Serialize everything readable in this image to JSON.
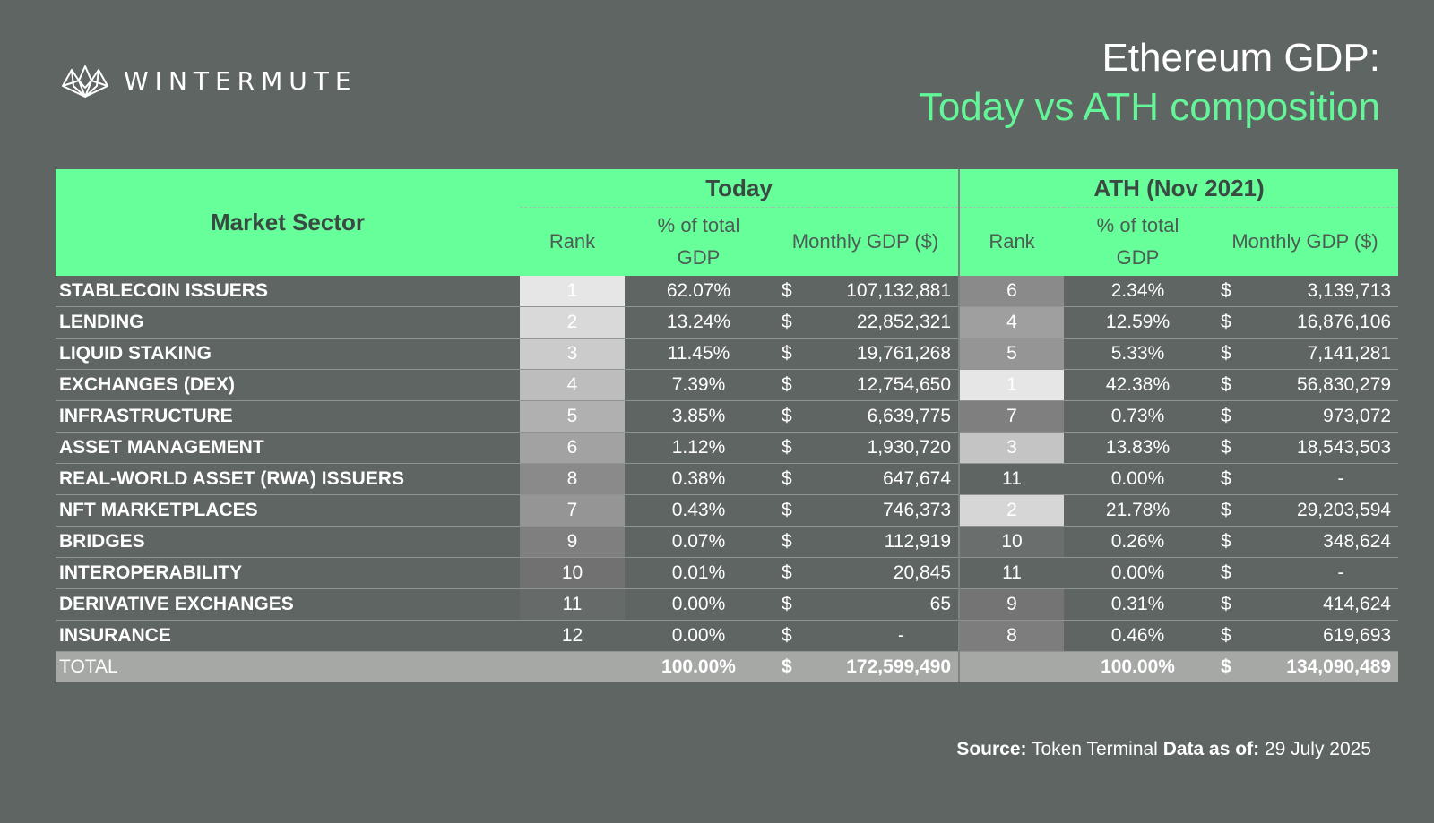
{
  "brand": {
    "name": "WINTERMUTE",
    "icon": "wintermute-logo-icon"
  },
  "title": {
    "line1": "Ethereum GDP:",
    "line2": "Today vs ATH composition"
  },
  "colors": {
    "accent": "#66ff99",
    "background": "#5f6563",
    "title_accent": "#63f598"
  },
  "table": {
    "sector_header": "Market Sector",
    "group_today": "Today",
    "group_ath": "ATH (Nov 2021)",
    "col_rank": "Rank",
    "col_pct_line1": "% of total",
    "col_pct_line2": "GDP",
    "col_gdp": "Monthly GDP ($)",
    "currency": "$",
    "rows": [
      {
        "sector": "STABLECOIN ISSUERS",
        "today_rank": "1",
        "today_pct": "62.07%",
        "today_gdp": "107,132,881",
        "ath_rank": "6",
        "ath_pct": "2.34%",
        "ath_gdp": "3,139,713",
        "today_shade": "#e6e6e6",
        "ath_shade": "#8a8a8a"
      },
      {
        "sector": "LENDING",
        "today_rank": "2",
        "today_pct": "13.24%",
        "today_gdp": "22,852,321",
        "ath_rank": "4",
        "ath_pct": "12.59%",
        "ath_gdp": "16,876,106",
        "today_shade": "#d9d9d9",
        "ath_shade": "#9f9f9f"
      },
      {
        "sector": "LIQUID STAKING",
        "today_rank": "3",
        "today_pct": "11.45%",
        "today_gdp": "19,761,268",
        "ath_rank": "5",
        "ath_pct": "5.33%",
        "ath_gdp": "7,141,281",
        "today_shade": "#cbcbcb",
        "ath_shade": "#959595"
      },
      {
        "sector": "EXCHANGES (DEX)",
        "today_rank": "4",
        "today_pct": "7.39%",
        "today_gdp": "12,754,650",
        "ath_rank": "1",
        "ath_pct": "42.38%",
        "ath_gdp": "56,830,279",
        "today_shade": "#bdbdbd",
        "ath_shade": "#e6e6e6"
      },
      {
        "sector": "INFRASTRUCTURE",
        "today_rank": "5",
        "today_pct": "3.85%",
        "today_gdp": "6,639,775",
        "ath_rank": "7",
        "ath_pct": "0.73%",
        "ath_gdp": "973,072",
        "today_shade": "#b0b0b0",
        "ath_shade": "#7f7f7f"
      },
      {
        "sector": "ASSET MANAGEMENT",
        "today_rank": "6",
        "today_pct": "1.12%",
        "today_gdp": "1,930,720",
        "ath_rank": "3",
        "ath_pct": "13.83%",
        "ath_gdp": "18,543,503",
        "today_shade": "#a2a2a2",
        "ath_shade": "#c4c4c4"
      },
      {
        "sector": "REAL-WORLD ASSET (RWA) ISSUERS",
        "today_rank": "8",
        "today_pct": "0.38%",
        "today_gdp": "647,674",
        "ath_rank": "11",
        "ath_pct": "0.00%",
        "ath_gdp": "-",
        "today_shade": "#8a8a8a",
        "ath_shade": "#5f6563"
      },
      {
        "sector": "NFT MARKETPLACES",
        "today_rank": "7",
        "today_pct": "0.43%",
        "today_gdp": "746,373",
        "ath_rank": "2",
        "ath_pct": "21.78%",
        "ath_gdp": "29,203,594",
        "today_shade": "#959595",
        "ath_shade": "#d6d6d6"
      },
      {
        "sector": "BRIDGES",
        "today_rank": "9",
        "today_pct": "0.07%",
        "today_gdp": "112,919",
        "ath_rank": "10",
        "ath_pct": "0.26%",
        "ath_gdp": "348,624",
        "today_shade": "#7f7f7f",
        "ath_shade": "#6a6e6c"
      },
      {
        "sector": "INTEROPERABILITY",
        "today_rank": "10",
        "today_pct": "0.01%",
        "today_gdp": "20,845",
        "ath_rank": "11",
        "ath_pct": "0.00%",
        "ath_gdp": "-",
        "today_shade": "#717171",
        "ath_shade": "#5f6563"
      },
      {
        "sector": "DERIVATIVE EXCHANGES",
        "today_rank": "11",
        "today_pct": "0.00%",
        "today_gdp": "65",
        "ath_rank": "9",
        "ath_pct": "0.31%",
        "ath_gdp": "414,624",
        "today_shade": "#666a68",
        "ath_shade": "#747474"
      },
      {
        "sector": "INSURANCE",
        "today_rank": "12",
        "today_pct": "0.00%",
        "today_gdp": "-",
        "ath_rank": "8",
        "ath_pct": "0.46%",
        "ath_gdp": "619,693",
        "today_shade": "#5f6563",
        "ath_shade": "#7d7d7d"
      }
    ],
    "total": {
      "label": "TOTAL",
      "today_pct": "100.00%",
      "today_gdp": "172,599,490",
      "ath_pct": "100.00%",
      "ath_gdp": "134,090,489"
    }
  },
  "source": {
    "label": "Source:",
    "value": "Token Terminal",
    "date_label": "Data as of:",
    "date_value": "29 July 2025"
  },
  "chart_data": {
    "type": "table",
    "title": "Ethereum GDP: Today vs ATH composition",
    "columns": [
      "Market Sector",
      "Today Rank",
      "Today % of total GDP",
      "Today Monthly GDP ($)",
      "ATH Rank",
      "ATH % of total GDP",
      "ATH Monthly GDP ($)"
    ],
    "rows": [
      [
        "STABLECOIN ISSUERS",
        1,
        62.07,
        107132881,
        6,
        2.34,
        3139713
      ],
      [
        "LENDING",
        2,
        13.24,
        22852321,
        4,
        12.59,
        16876106
      ],
      [
        "LIQUID STAKING",
        3,
        11.45,
        19761268,
        5,
        5.33,
        7141281
      ],
      [
        "EXCHANGES (DEX)",
        4,
        7.39,
        12754650,
        1,
        42.38,
        56830279
      ],
      [
        "INFRASTRUCTURE",
        5,
        3.85,
        6639775,
        7,
        0.73,
        973072
      ],
      [
        "ASSET MANAGEMENT",
        6,
        1.12,
        1930720,
        3,
        13.83,
        18543503
      ],
      [
        "REAL-WORLD ASSET (RWA) ISSUERS",
        8,
        0.38,
        647674,
        11,
        0.0,
        null
      ],
      [
        "NFT MARKETPLACES",
        7,
        0.43,
        746373,
        2,
        21.78,
        29203594
      ],
      [
        "BRIDGES",
        9,
        0.07,
        112919,
        10,
        0.26,
        348624
      ],
      [
        "INTEROPERABILITY",
        10,
        0.01,
        20845,
        11,
        0.0,
        null
      ],
      [
        "DERIVATIVE EXCHANGES",
        11,
        0.0,
        65,
        9,
        0.31,
        414624
      ],
      [
        "INSURANCE",
        12,
        0.0,
        null,
        8,
        0.46,
        619693
      ]
    ],
    "totals": {
      "today_pct": 100.0,
      "today_gdp": 172599490,
      "ath_pct": 100.0,
      "ath_gdp": 134090489
    }
  }
}
